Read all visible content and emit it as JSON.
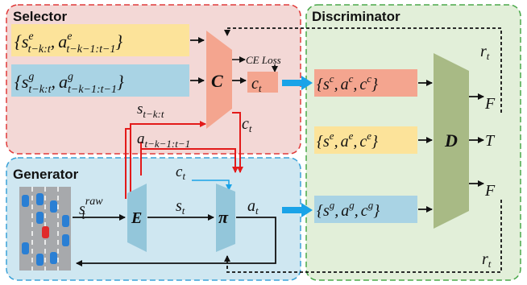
{
  "panels": {
    "selector": "Selector",
    "generator": "Generator",
    "discriminator": "Discriminator"
  },
  "selector": {
    "expert_input": {
      "open": "{",
      "s": "s",
      "s_sup": "e",
      "s_sub": "t−k:t",
      "comma": ",",
      "a": "a",
      "a_sup": "e",
      "a_sub": "t−k−1:t−1",
      "close": "}"
    },
    "gen_input": {
      "open": "{",
      "s": "s",
      "s_sup": "g",
      "s_sub": "t−k:t",
      "comma": ",",
      "a": "a",
      "a_sup": "g",
      "a_sub": "t−k−1:t−1",
      "close": "}"
    },
    "block_label": "C",
    "loss_label": "CE Loss",
    "output_c": "c",
    "output_c_sub": "t",
    "side_c": "c",
    "side_c_sub": "t"
  },
  "generator": {
    "raw": "s",
    "raw_sub": "t",
    "raw_sup": "raw",
    "encoder": "E",
    "state": "s",
    "state_sub": "t",
    "policy": "π",
    "action": "a",
    "action_sub": "t",
    "ctx": "c",
    "ctx_sub": "t",
    "hist_s": "s",
    "hist_s_sub": "t−k:t",
    "hist_a": "a",
    "hist_a_sub": "t−k−1:t−1"
  },
  "discriminator": {
    "block_label": "D",
    "c_tuple": {
      "open": "{",
      "s": "s",
      "s_sup": "c",
      "a": "a",
      "a_sup": "c",
      "c": "c",
      "c_sup": "c",
      "close": "}",
      "comma": ","
    },
    "e_tuple": {
      "open": "{",
      "s": "s",
      "s_sup": "e",
      "a": "a",
      "a_sup": "e",
      "c": "c",
      "c_sup": "e",
      "close": "}",
      "comma": ","
    },
    "g_tuple": {
      "open": "{",
      "s": "s",
      "s_sup": "g",
      "a": "a",
      "a_sup": "g",
      "c": "c",
      "c_sup": "g",
      "close": "}",
      "comma": ","
    },
    "out_top": "F",
    "out_mid": "T",
    "out_bot": "F",
    "reward_top": "r",
    "reward_top_sub": "t",
    "reward_bot": "r",
    "reward_bot_sub": "t"
  },
  "colors": {
    "selector_bg": "#f3d8d6",
    "selector_border": "#e03a3a",
    "generator_bg": "#cfe7f1",
    "generator_border": "#3aa2d8",
    "disc_bg": "#e2efd9",
    "disc_border": "#4aa84a",
    "yellow_box": "#fce39a",
    "blue_box": "#a9d3e4",
    "salmon_box": "#f4a58f",
    "c_block": "#f4a58f",
    "e_block": "#93c6da",
    "d_block": "#a8ba85",
    "red_line": "#e31a1a",
    "cyan_arrow": "#1aa3e8"
  }
}
